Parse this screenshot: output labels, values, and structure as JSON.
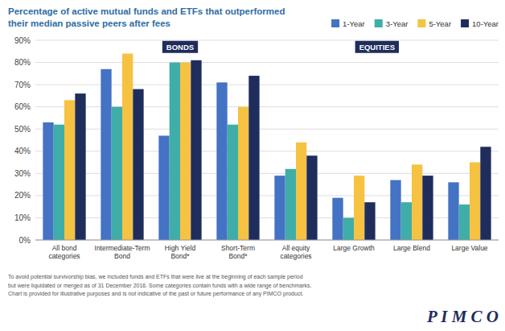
{
  "chart_data": {
    "type": "bar",
    "title": "Percentage of active mutual funds and ETFs that outperformed\ntheir median passive peers after fees",
    "categories": [
      "All bond\ncategories",
      "Intermediate-Term\nBond",
      "High Yield\nBond*",
      "Short-Term\nBond*",
      "All equity\ncategories",
      "Large Growth",
      "Large Blend",
      "Large Value"
    ],
    "series": [
      {
        "name": "1-Year",
        "color": "#4472C4",
        "values": [
          53,
          77,
          47,
          71,
          29,
          19,
          27,
          26
        ]
      },
      {
        "name": "3-Year",
        "color": "#3FADA8",
        "values": [
          52,
          60,
          80,
          52,
          32,
          10,
          17,
          16
        ]
      },
      {
        "name": "5-Year",
        "color": "#F5C242",
        "values": [
          63,
          84,
          80,
          60,
          44,
          29,
          34,
          35
        ]
      },
      {
        "name": "10-Year",
        "color": "#1F2D5C",
        "values": [
          66,
          68,
          81,
          74,
          38,
          17,
          29,
          42
        ]
      }
    ],
    "ylim": [
      0,
      90
    ],
    "yticks": [
      {
        "value": 0,
        "label": "0%"
      },
      {
        "value": 10,
        "label": "10%"
      },
      {
        "value": 20,
        "label": "20%"
      },
      {
        "value": 30,
        "label": "30%"
      },
      {
        "value": 40,
        "label": "40%"
      },
      {
        "value": 50,
        "label": "50%"
      },
      {
        "value": 60,
        "label": "60%"
      },
      {
        "value": 70,
        "label": "70%"
      },
      {
        "value": 80,
        "label": "80%"
      },
      {
        "value": 90,
        "label": "90%"
      }
    ],
    "grid": true,
    "legend": "top right",
    "annotations": [
      {
        "text": "BONDS",
        "x": 2.0,
        "y": 87
      },
      {
        "text": "EQUITIES",
        "x": 5.4,
        "y": 87
      },
      {
        "text": "To avoid potential survivorship bias, we included funds and ETFs that were live at the beginning of each sample period\nbut were liquidated or merged as of 31 December 2016. Some categories contain funds with a wide range of benchmarks.\nChart is provided for illustrative purposes and is not indicative of the past or future performance of any PIMCO product."
      },
      {
        "text": "P I M C O"
      }
    ]
  }
}
